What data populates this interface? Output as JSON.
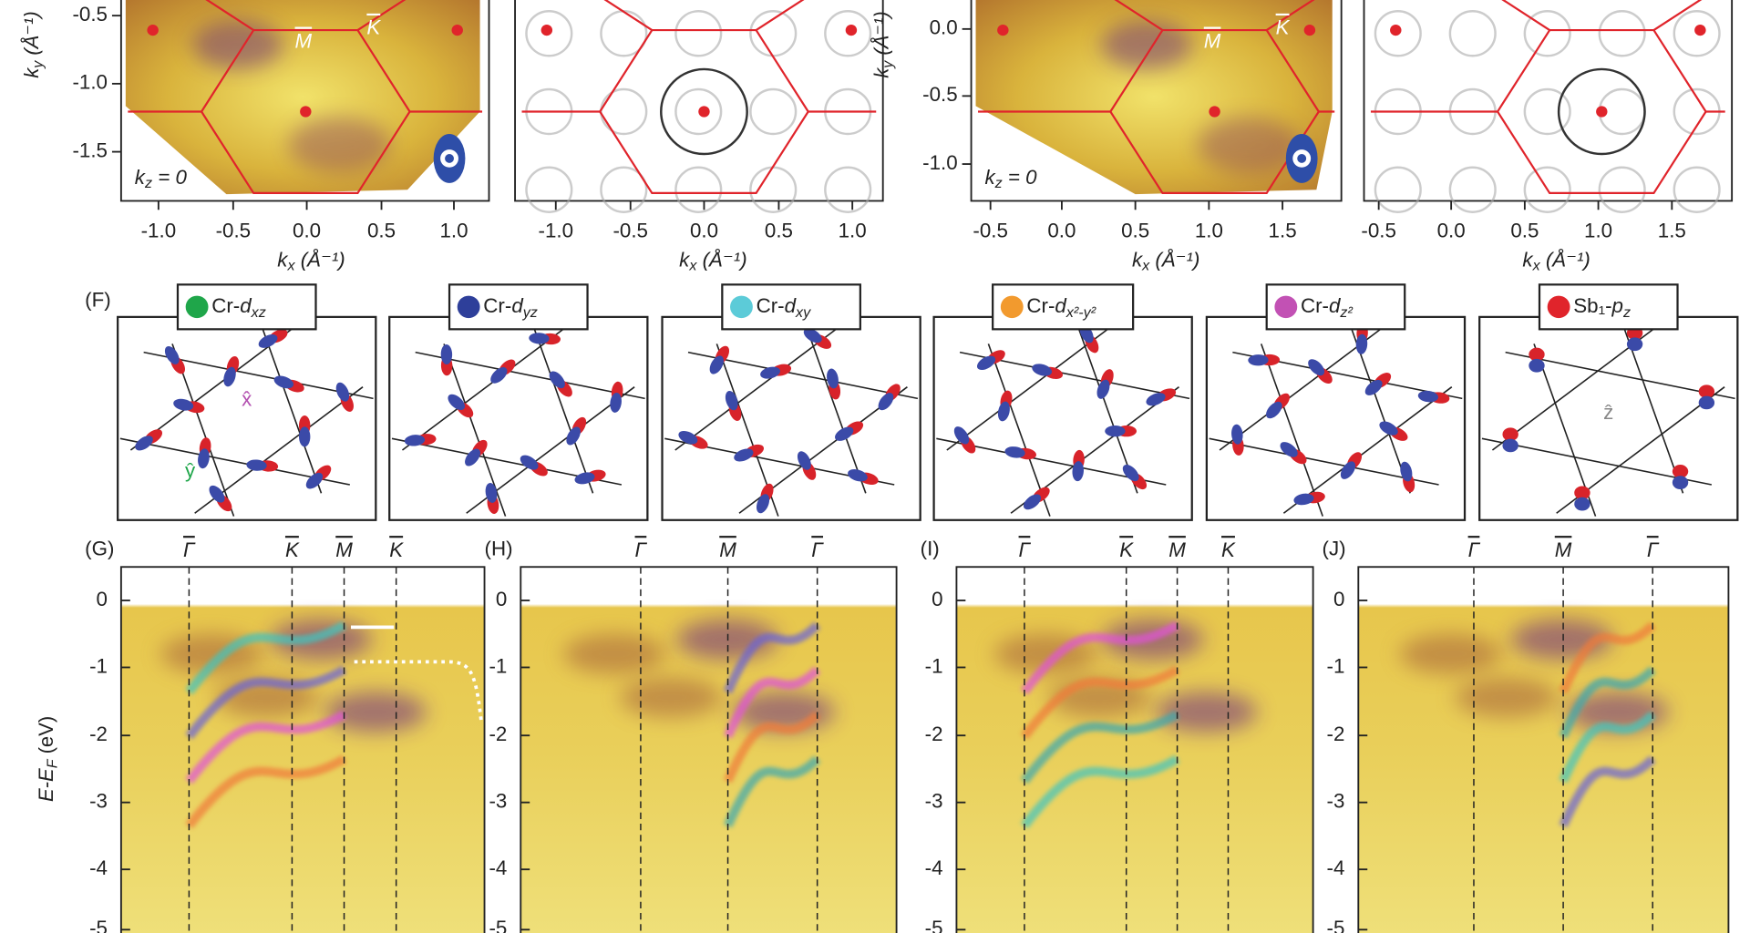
{
  "top_panels": [
    {
      "xticks": [
        "-1.0",
        "-0.5",
        "0.0",
        "0.5",
        "1.0"
      ],
      "yticks": [
        "-0.5",
        "-1.0",
        "-1.5"
      ],
      "xlabel": {
        "var": "k",
        "sub": "x",
        "unit": " (Å⁻¹)"
      },
      "ylabel": {
        "var": "k",
        "sub": "y",
        "unit": " (Å⁻¹)"
      },
      "kz": {
        "var": "k",
        "sub": "z",
        "eq": " = 0"
      },
      "points": [
        "M",
        "K"
      ]
    },
    {
      "xticks": [
        "-1.0",
        "-0.5",
        "0.0",
        "0.5",
        "1.0"
      ],
      "xlabel": {
        "var": "k",
        "sub": "x",
        "unit": " (Å⁻¹)"
      }
    },
    {
      "xticks": [
        "-0.5",
        "0.0",
        "0.5",
        "1.0",
        "1.5"
      ],
      "yticks": [
        "0.0",
        "-0.5",
        "-1.0"
      ],
      "xlabel": {
        "var": "k",
        "sub": "x",
        "unit": " (Å⁻¹)"
      },
      "ylabel": {
        "var": "k",
        "sub": "y",
        "unit": " (Å⁻¹)"
      },
      "kz": {
        "var": "k",
        "sub": "z",
        "eq": " = 0"
      },
      "points": [
        "M",
        "K"
      ]
    },
    {
      "xticks": [
        "-0.5",
        "0.0",
        "0.5",
        "1.0",
        "1.5"
      ],
      "xlabel": {
        "var": "k",
        "sub": "x",
        "unit": " (Å⁻¹)"
      }
    }
  ],
  "orbitals": {
    "label": "(F)",
    "items": [
      {
        "prefix": "Cr-",
        "orbital": "d",
        "sub": "xz",
        "color": "#1fa64a",
        "axes": [
          "x̂",
          "ŷ"
        ]
      },
      {
        "prefix": "Cr-",
        "orbital": "d",
        "sub": "yz",
        "color": "#2e3f9a"
      },
      {
        "prefix": "Cr-",
        "orbital": "d",
        "sub": "xy",
        "color": "#5ccbd8"
      },
      {
        "prefix": "Cr-",
        "orbital": "d",
        "sub": "x²-y²",
        "color": "#f29a2e"
      },
      {
        "prefix": "Cr-",
        "orbital": "d",
        "sub": "z²",
        "color": "#c251b4"
      },
      {
        "prefix": "Sb₁-",
        "orbital": "p",
        "sub": "z",
        "color": "#e0242b",
        "axes": [
          "ẑ"
        ]
      }
    ]
  },
  "bands": {
    "ylabel": "E-E",
    "ylabel_sub": "F",
    "ylabel_unit": " (eV)",
    "panels": [
      {
        "label": "(G)",
        "points": [
          "Γ",
          "K",
          "M",
          "K"
        ],
        "yticks": [
          "0",
          "-1",
          "-2",
          "-3",
          "-4",
          "-5"
        ]
      },
      {
        "label": "(H)",
        "points": [
          "Γ",
          "M",
          "Γ"
        ],
        "yticks": [
          "0",
          "-1",
          "-2",
          "-3",
          "-4",
          "-5"
        ]
      },
      {
        "label": "(I)",
        "points": [
          "Γ",
          "K",
          "M",
          "K"
        ],
        "yticks": [
          "0",
          "-1",
          "-2",
          "-3",
          "-4",
          "-5"
        ]
      },
      {
        "label": "(J)",
        "points": [
          "Γ",
          "M",
          "Γ"
        ],
        "yticks": [
          "0",
          "-1",
          "-2",
          "-3",
          "-4",
          "-5"
        ]
      }
    ]
  }
}
